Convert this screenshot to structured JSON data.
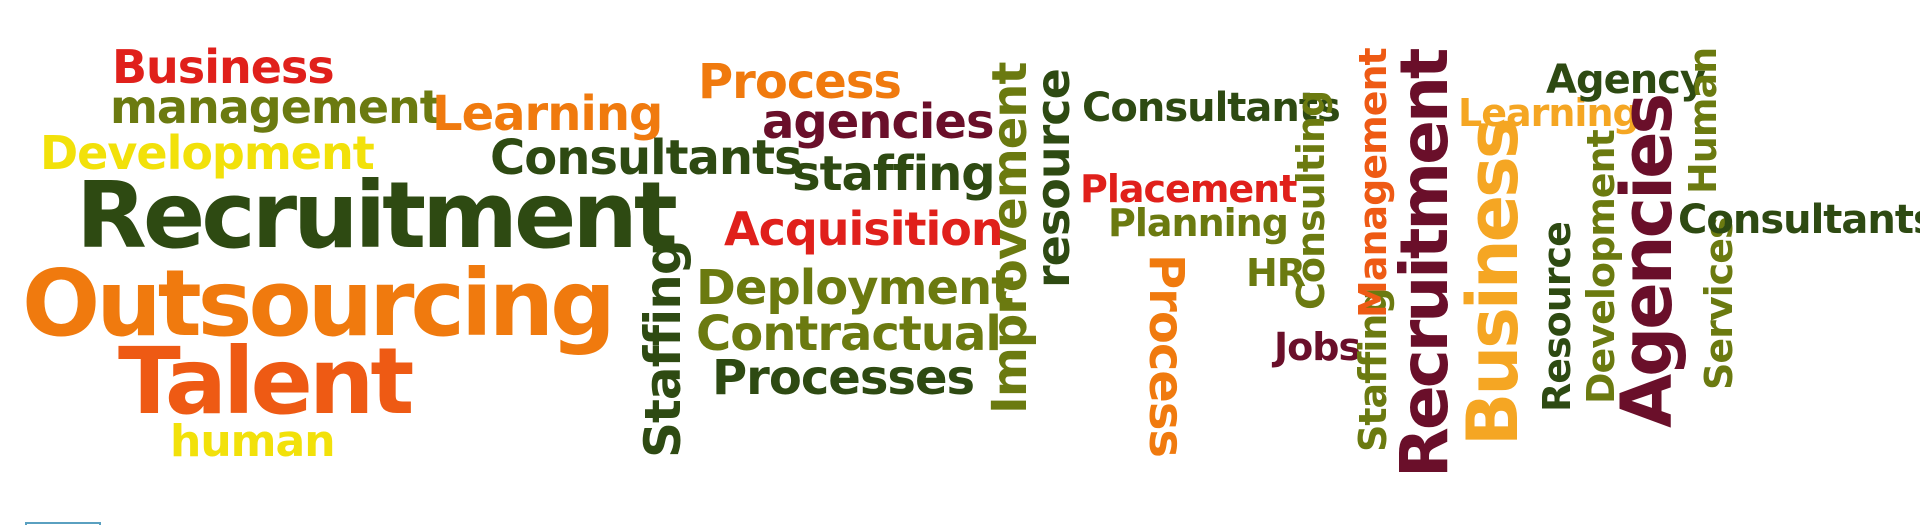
{
  "colors": {
    "red": "#e0201b",
    "dark_green": "#2e4a12",
    "olive": "#6b7a10",
    "orange": "#f07a0e",
    "yellow": "#f2e10a",
    "maroon": "#6a0f2a",
    "orange_red": "#ee5a14",
    "amber": "#f5a623"
  },
  "words": {
    "business_1": "Business",
    "management_1": "management",
    "learning_1": "Learning",
    "development_1": "Development",
    "recruitment_1": "Recruitment",
    "outsourcing": "Outsourcing",
    "talent": "Talent",
    "human_1": "human",
    "process_1": "Process",
    "agencies_1": "agencies",
    "consultants_1": "Consultants",
    "staffing_1": "staffing",
    "acquisition": "Acquisition",
    "deployment": "Deployment",
    "contractual": "Contractual",
    "processes": "Processes",
    "staffing_2": "Staffing",
    "improvement": "Improvement",
    "resource_1": "resource",
    "consultants_2": "Consultants",
    "placement": "Placement",
    "planning": "Planning",
    "process_2": "Process",
    "hr": "HR",
    "consulting": "Consulting",
    "jobs": "Jobs",
    "staffing_3": "Staffing",
    "management_2": "Management",
    "recruitment_2": "Recruitment",
    "learning_2": "Learning",
    "business_2": "Business",
    "agency": "Agency",
    "resource_2": "Resource",
    "development_2": "Development",
    "agencies_2": "Agencies",
    "human_2": "Human",
    "services": "Services",
    "consultants_3": "Consultants"
  }
}
